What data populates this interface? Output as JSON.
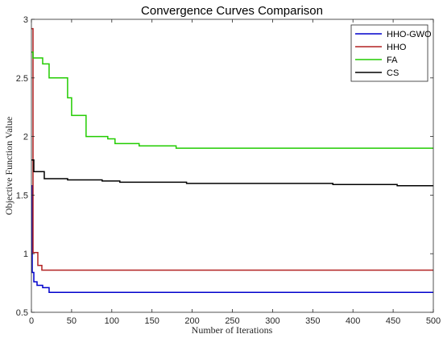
{
  "chart_data": {
    "type": "line",
    "title": "Convergence Curves Comparison",
    "xlabel": "Number of Iterations",
    "ylabel": "Objective Function Value",
    "xlim": [
      0,
      500
    ],
    "ylim": [
      0.5,
      3
    ],
    "xticks": [
      0,
      50,
      100,
      150,
      200,
      250,
      300,
      350,
      400,
      450,
      500
    ],
    "yticks": [
      0.5,
      1,
      1.5,
      2,
      2.5,
      3
    ],
    "xtick_labels": [
      "0",
      "50",
      "100",
      "150",
      "200",
      "250",
      "300",
      "350",
      "400",
      "450",
      "500"
    ],
    "ytick_labels": [
      "0.5",
      "1",
      "1.5",
      "2",
      "2.5",
      "3"
    ],
    "grid": false,
    "legend_position": "top-right",
    "series": [
      {
        "name": "HHO-GWO",
        "color": "#0000cc",
        "step": true,
        "points": [
          [
            0,
            1.58
          ],
          [
            1,
            0.84
          ],
          [
            3,
            0.76
          ],
          [
            7,
            0.73
          ],
          [
            14,
            0.71
          ],
          [
            22,
            0.67
          ],
          [
            500,
            0.67
          ]
        ]
      },
      {
        "name": "HHO",
        "color": "#b22222",
        "step": true,
        "points": [
          [
            0,
            2.92
          ],
          [
            2,
            1.01
          ],
          [
            8,
            0.9
          ],
          [
            13,
            0.86
          ],
          [
            500,
            0.86
          ]
        ]
      },
      {
        "name": "FA",
        "color": "#22cc00",
        "step": true,
        "points": [
          [
            0,
            2.72
          ],
          [
            2,
            2.67
          ],
          [
            14,
            2.62
          ],
          [
            22,
            2.5
          ],
          [
            45,
            2.33
          ],
          [
            50,
            2.18
          ],
          [
            68,
            2.0
          ],
          [
            95,
            1.98
          ],
          [
            104,
            1.94
          ],
          [
            134,
            1.92
          ],
          [
            180,
            1.9
          ],
          [
            500,
            1.9
          ]
        ]
      },
      {
        "name": "CS",
        "color": "#000000",
        "step": true,
        "points": [
          [
            0,
            1.8
          ],
          [
            3,
            1.7
          ],
          [
            16,
            1.64
          ],
          [
            45,
            1.63
          ],
          [
            88,
            1.62
          ],
          [
            110,
            1.61
          ],
          [
            193,
            1.6
          ],
          [
            375,
            1.59
          ],
          [
            455,
            1.58
          ],
          [
            500,
            1.58
          ]
        ]
      }
    ]
  }
}
